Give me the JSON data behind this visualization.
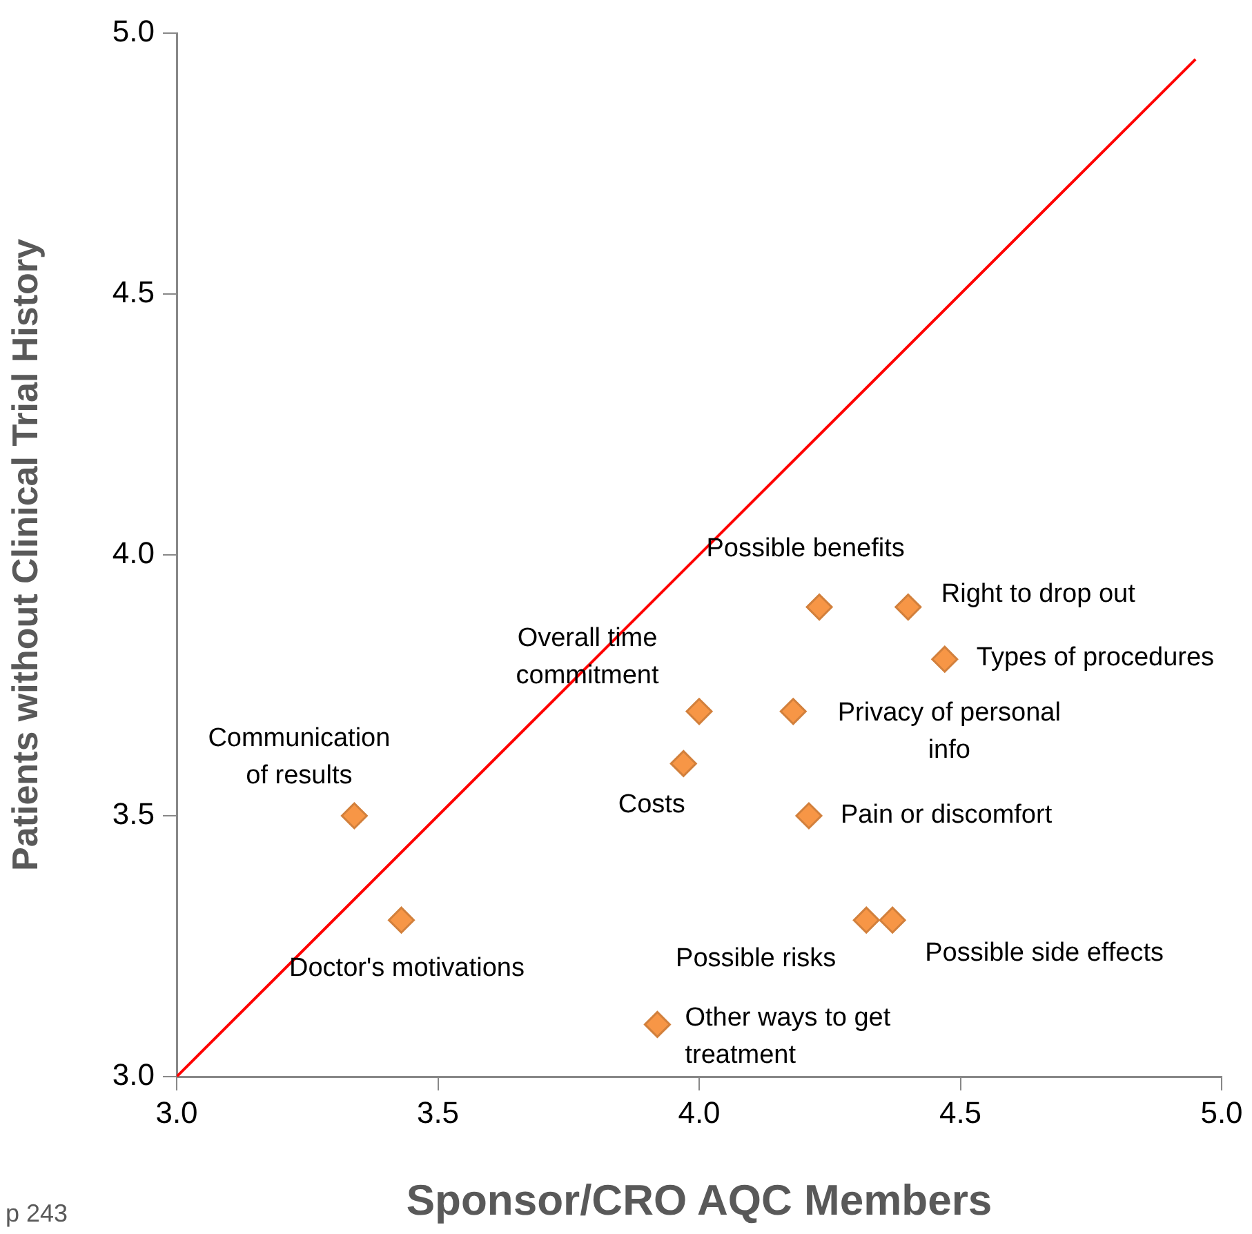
{
  "chart_data": {
    "type": "scatter",
    "xlabel": "Sponsor/CRO AQC Members",
    "ylabel": "Patients without Clinical Trial History",
    "xlim": [
      3.0,
      5.0
    ],
    "xticks": [
      {
        "value": 3.0,
        "label": "3.0"
      },
      {
        "value": 3.5,
        "label": "3.5"
      },
      {
        "value": 4.0,
        "label": "4.0"
      },
      {
        "value": 4.5,
        "label": "4.5"
      },
      {
        "value": 5.0,
        "label": "5.0"
      }
    ],
    "ylim": [
      3.0,
      5.0
    ],
    "yticks": [
      {
        "value": 3.0,
        "label": "3.0"
      },
      {
        "value": 3.5,
        "label": "3.5"
      },
      {
        "value": 4.0,
        "label": "4.0"
      },
      {
        "value": 4.5,
        "label": "4.5"
      },
      {
        "value": 5.0,
        "label": "5.0"
      }
    ],
    "grid": false,
    "legend": false,
    "marker": "diamond",
    "series": [
      {
        "color": "#f79646",
        "x": [
          3.34,
          3.43,
          4.0,
          3.97,
          3.92,
          4.23,
          4.4,
          4.47,
          4.18,
          4.21,
          4.32,
          4.37
        ],
        "values": [
          3.5,
          3.3,
          3.7,
          3.6,
          3.1,
          3.9,
          3.9,
          3.8,
          3.7,
          3.5,
          3.3,
          3.3
        ]
      },
      {
        "type": "line",
        "color": "#ff0000",
        "x": [
          3.0,
          4.95
        ],
        "values": [
          3.0,
          4.95
        ],
        "marker": "none",
        "line_style": "solid"
      }
    ],
    "annotations": [
      {
        "text": "Communication of results",
        "x": 3.34,
        "y": 3.5
      },
      {
        "text": "Doctor's motivations",
        "x": 3.43,
        "y": 3.3
      },
      {
        "text": "Overall time commitment",
        "x": 4.0,
        "y": 3.7
      },
      {
        "text": "Costs",
        "x": 3.97,
        "y": 3.6
      },
      {
        "text": "Other ways to get treatment",
        "x": 3.92,
        "y": 3.1
      },
      {
        "text": "Possible benefits",
        "x": 4.23,
        "y": 3.9
      },
      {
        "text": "Right to drop out",
        "x": 4.4,
        "y": 3.9
      },
      {
        "text": "Types of procedures",
        "x": 4.47,
        "y": 3.8
      },
      {
        "text": "Privacy of personal info",
        "x": 4.18,
        "y": 3.7
      },
      {
        "text": "Pain or discomfort",
        "x": 4.21,
        "y": 3.5
      },
      {
        "text": "Possible risks",
        "x": 4.32,
        "y": 3.3
      },
      {
        "text": "Possible side effects",
        "x": 4.37,
        "y": 3.3
      },
      "p 243"
    ]
  }
}
